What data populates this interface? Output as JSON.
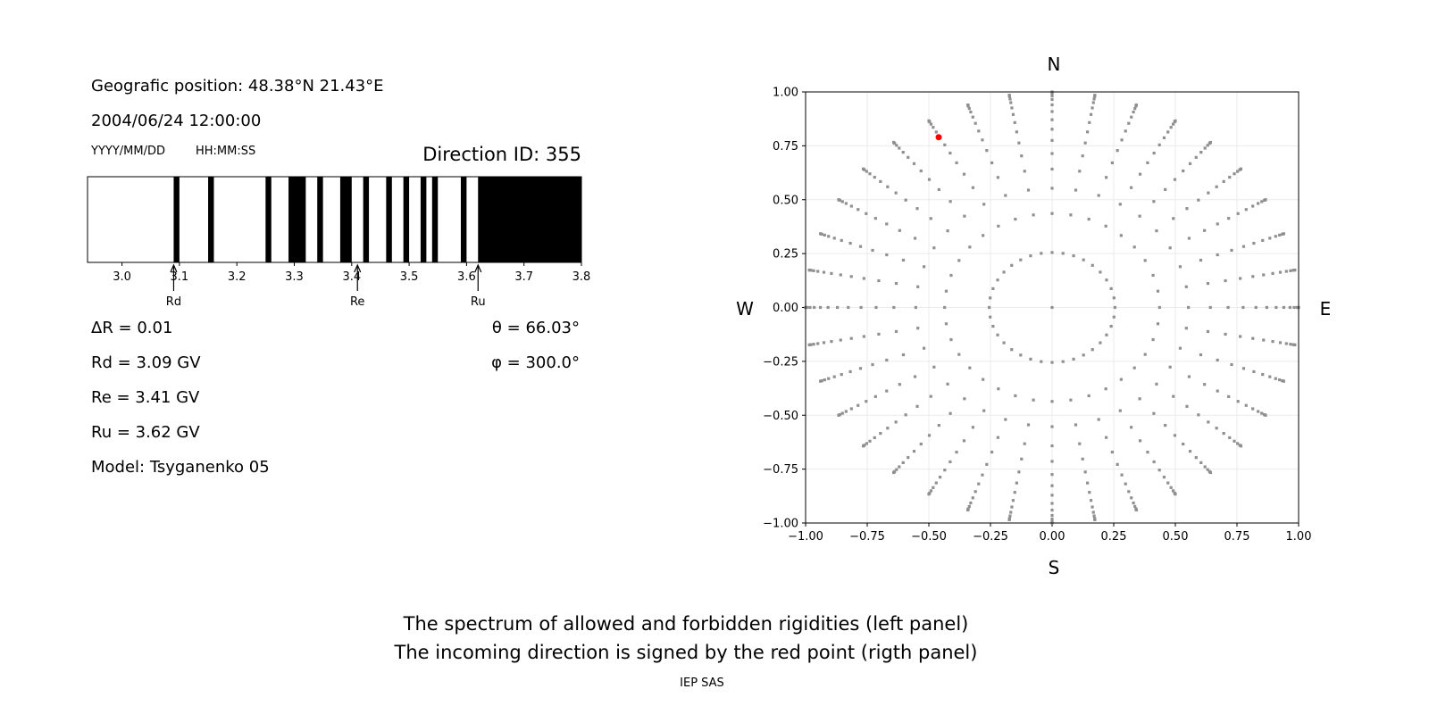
{
  "info": {
    "position": "Geografic position: 48.38°N 21.43°E",
    "datetime": "2004/06/24 12:00:00",
    "date_format": "YYYY/MM/DD",
    "time_format": "HH:MM:SS",
    "direction_id": "Direction ID: 355",
    "delta_r": "ΔR = 0.01",
    "rd": "Rd = 3.09 GV",
    "re": "Re = 3.41 GV",
    "ru": "Ru = 3.62 GV",
    "model": "Model: Tsyganenko 05",
    "theta": "θ = 66.03°",
    "phi": "φ = 300.0°"
  },
  "caption": {
    "line1": "The spectrum of allowed and forbidden rigidities (left panel)",
    "line2": "The incoming direction is signed by the red point (rigth panel)",
    "credit": "IEP SAS"
  },
  "chart_data": [
    {
      "type": "bar",
      "description_role": "rigidity spectrum",
      "xlim": [
        2.94,
        3.8
      ],
      "xticks": [
        "3.0",
        "3.1",
        "3.2",
        "3.3",
        "3.4",
        "3.5",
        "3.6",
        "3.7",
        "3.8"
      ],
      "forbidden_bands": [
        [
          3.09,
          3.1
        ],
        [
          3.15,
          3.16
        ],
        [
          3.25,
          3.26
        ],
        [
          3.29,
          3.32
        ],
        [
          3.34,
          3.35
        ],
        [
          3.38,
          3.4
        ],
        [
          3.42,
          3.43
        ],
        [
          3.46,
          3.47
        ],
        [
          3.49,
          3.5
        ],
        [
          3.52,
          3.53
        ],
        [
          3.54,
          3.55
        ],
        [
          3.59,
          3.6
        ],
        [
          3.62,
          3.8
        ]
      ],
      "band_color": "#000000",
      "markers": [
        {
          "label": "Rd",
          "value": 3.09
        },
        {
          "label": "Re",
          "value": 3.41
        },
        {
          "label": "Ru",
          "value": 3.62
        }
      ]
    },
    {
      "type": "scatter",
      "xlim": [
        -1,
        1
      ],
      "ylim": [
        -1,
        1
      ],
      "xticks": [
        "−1.00",
        "−0.75",
        "−0.50",
        "−0.25",
        "0.00",
        "0.25",
        "0.50",
        "0.75",
        "1.00"
      ],
      "yticks": [
        "−1.00",
        "−0.75",
        "−0.50",
        "−0.25",
        "0.00",
        "0.25",
        "0.50",
        "0.75",
        "1.00"
      ],
      "grid": true,
      "directions": {
        "north": "N",
        "south": "S",
        "west": "W",
        "east": "E"
      },
      "azimuths_deg_step": 10,
      "radii": [
        0.255,
        0.436,
        0.553,
        0.642,
        0.714,
        0.775,
        0.827,
        0.871,
        0.909,
        0.94,
        0.965,
        0.982,
        0.994,
        0.999,
        1.0
      ],
      "center_point": [
        0,
        0
      ],
      "point_color": "#909090",
      "highlight": {
        "x": -0.46,
        "y": 0.79,
        "color": "#ff0000"
      }
    }
  ]
}
